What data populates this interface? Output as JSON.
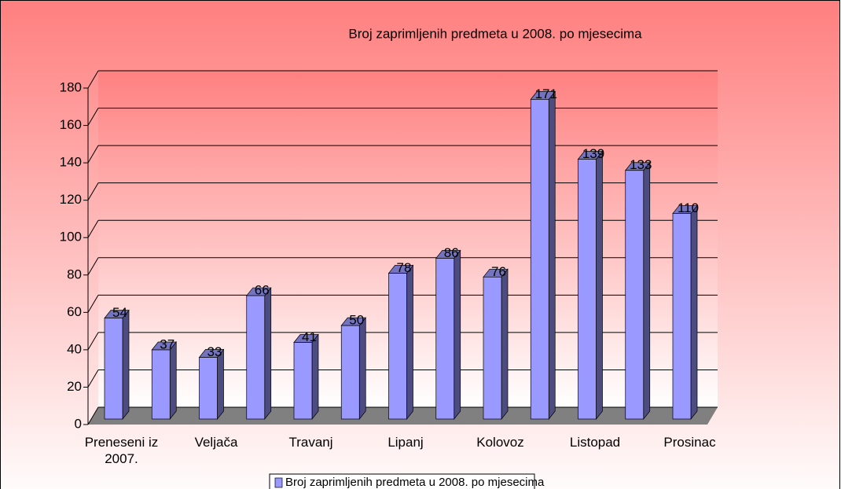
{
  "chart_data": {
    "type": "bar3d",
    "title": "Broj zaprimljenih predmeta u 2008. po mjesecima",
    "categories": [
      "Preneseni iz 2007.",
      null,
      "Veljača",
      null,
      "Travanj",
      null,
      "Lipanj",
      null,
      "Kolovoz",
      null,
      "Listopad",
      null,
      "Prosinac"
    ],
    "series": [
      {
        "name": "Broj zaprimljenih predmeta u 2008. po mjesecima",
        "color": "#9999ff",
        "values": [
          54,
          37,
          33,
          66,
          41,
          50,
          78,
          86,
          76,
          171,
          139,
          133,
          110
        ]
      }
    ],
    "ylim": [
      0,
      180
    ],
    "yticks": [
      0,
      20,
      40,
      60,
      80,
      100,
      120,
      140,
      160,
      180
    ],
    "grid": true,
    "legend": "bottom"
  }
}
